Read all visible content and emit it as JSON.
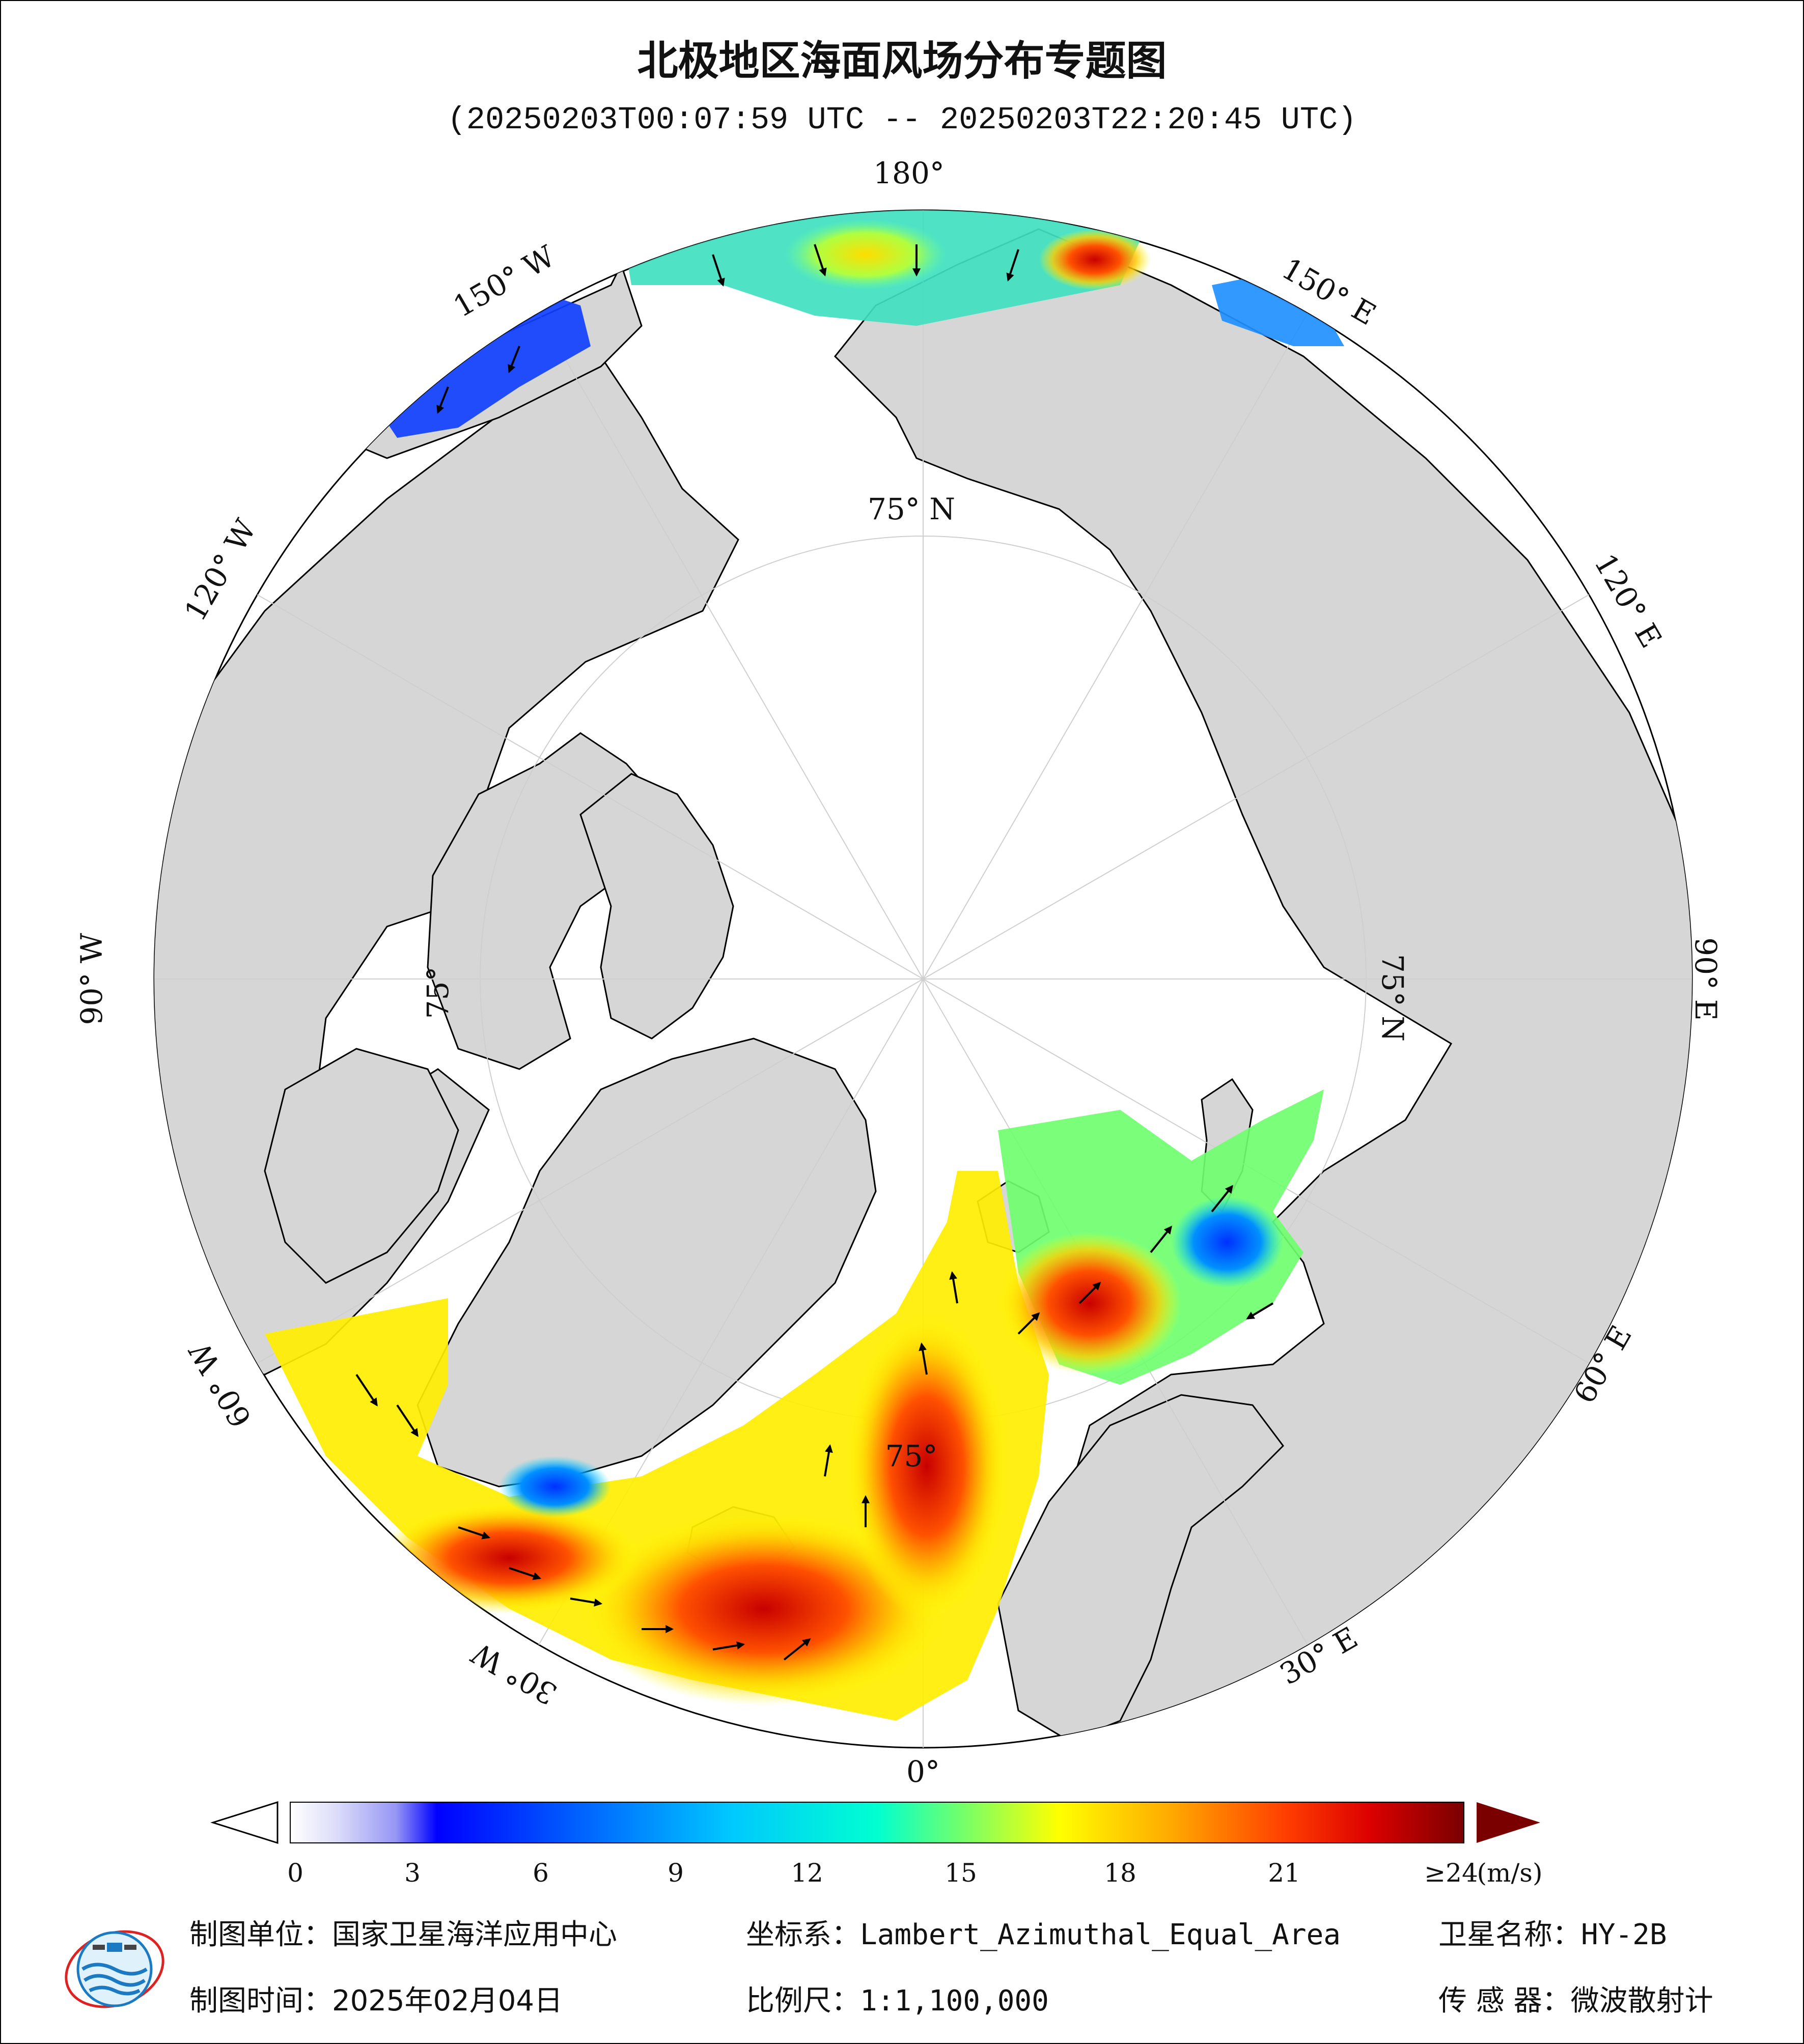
{
  "title": "北极地区海面风场分布专题图",
  "subtitle": "(20250203T00:07:59 UTC -- 20250203T22:20:45 UTC)",
  "map": {
    "projection": "Lambert_Azimuthal_Equal_Area",
    "colors": {
      "ocean": "#ffffff",
      "land": "#d6d6d6",
      "coast": "#000000",
      "grid": "#cfcfcf"
    },
    "meridian_labels": [
      "180°",
      "150° E",
      "120° E",
      "90° E",
      "60° E",
      "30° E",
      "0°",
      "30° W",
      "60° W",
      "90° W",
      "120° W",
      "150° W"
    ],
    "parallel_labels": [
      "75° N",
      "75° N",
      "75°",
      "75°"
    ]
  },
  "colorbar": {
    "unit": "(m/s)",
    "ticks": [
      "0",
      "3",
      "6",
      "9",
      "12",
      "15",
      "18",
      "21",
      "≥24"
    ],
    "min": 0,
    "max": 24,
    "colors": [
      "#ffffff",
      "#b4b4f5",
      "#0000ff",
      "#0064ff",
      "#00c8ff",
      "#00ffd0",
      "#80ff60",
      "#ffff00",
      "#ffaa00",
      "#ff3c00",
      "#dc0000",
      "#7a0000"
    ]
  },
  "footer": {
    "producer_label": "制图单位：",
    "producer": "国家卫星海洋应用中心",
    "date_label": "制图时间：",
    "date": "2025年02月04日",
    "crs_label": "坐标系：",
    "crs": "Lambert_Azimuthal_Equal_Area",
    "scale_label": "比例尺：",
    "scale": "1:1,100,000",
    "satellite_label": "卫星名称：",
    "satellite": "HY-2B",
    "sensor_label": "传 感 器：",
    "sensor": "微波散射计"
  }
}
